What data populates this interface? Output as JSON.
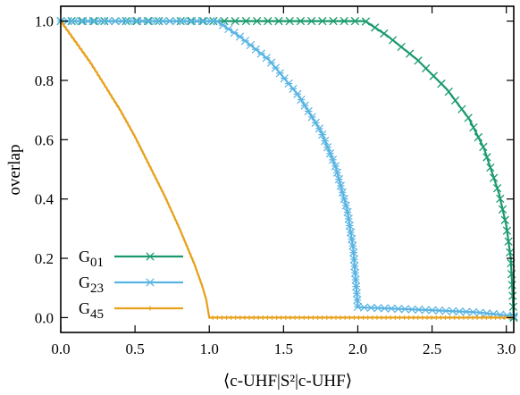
{
  "chart_data": {
    "type": "line",
    "xlabel": "⟨c-UHF|S²|c-UHF⟩",
    "ylabel": "overlap",
    "xlim": [
      0.0,
      3.05
    ],
    "ylim": [
      -0.05,
      1.05
    ],
    "x_ticks": [
      "0.0",
      "0.5",
      "1.0",
      "1.5",
      "2.0",
      "2.5",
      "3.0"
    ],
    "y_ticks": [
      "0.0",
      "0.2",
      "0.4",
      "0.6",
      "0.8",
      "1.0"
    ],
    "legend_position": "bottom-left",
    "series": [
      {
        "name": "G01",
        "label_main": "G",
        "label_sub": "01",
        "color": "#1a9a6c",
        "marker": "x",
        "points": [
          [
            0.0,
            1.0
          ],
          [
            1.0,
            1.0
          ],
          [
            2.0,
            1.0
          ],
          [
            2.05,
            1.0
          ],
          [
            2.2,
            0.95
          ],
          [
            2.4,
            0.87
          ],
          [
            2.6,
            0.77
          ],
          [
            2.75,
            0.67
          ],
          [
            2.85,
            0.57
          ],
          [
            2.95,
            0.42
          ],
          [
            3.0,
            0.31
          ],
          [
            3.03,
            0.2
          ],
          [
            3.04,
            0.1
          ],
          [
            3.05,
            0.0
          ]
        ]
      },
      {
        "name": "G23",
        "label_main": "G",
        "label_sub": "23",
        "color": "#59b4e2",
        "marker": "*",
        "points": [
          [
            0.0,
            1.0
          ],
          [
            1.0,
            1.0
          ],
          [
            1.05,
            1.0
          ],
          [
            1.2,
            0.95
          ],
          [
            1.4,
            0.87
          ],
          [
            1.6,
            0.75
          ],
          [
            1.75,
            0.63
          ],
          [
            1.85,
            0.51
          ],
          [
            1.93,
            0.36
          ],
          [
            1.97,
            0.23
          ],
          [
            1.99,
            0.1
          ],
          [
            2.0,
            0.04
          ],
          [
            2.0,
            0.035
          ],
          [
            2.5,
            0.025
          ],
          [
            2.8,
            0.018
          ],
          [
            3.05,
            0.005
          ]
        ]
      },
      {
        "name": "G45",
        "label_main": "G",
        "label_sub": "45",
        "color": "#e7a11b",
        "marker": "|",
        "points": [
          [
            0.0,
            1.0
          ],
          [
            0.1,
            0.93
          ],
          [
            0.2,
            0.86
          ],
          [
            0.3,
            0.78
          ],
          [
            0.4,
            0.7
          ],
          [
            0.5,
            0.61
          ],
          [
            0.6,
            0.51
          ],
          [
            0.7,
            0.41
          ],
          [
            0.8,
            0.3
          ],
          [
            0.9,
            0.18
          ],
          [
            0.95,
            0.11
          ],
          [
            0.98,
            0.06
          ],
          [
            1.0,
            0.0
          ],
          [
            1.0,
            0.0
          ],
          [
            2.0,
            0.0
          ],
          [
            3.05,
            0.0
          ]
        ]
      }
    ]
  }
}
